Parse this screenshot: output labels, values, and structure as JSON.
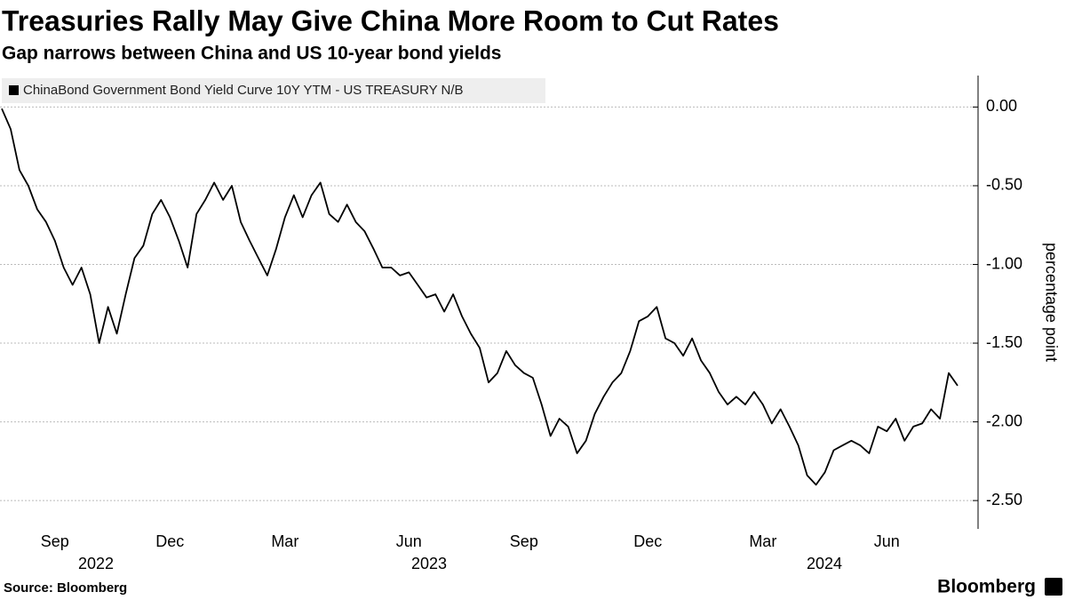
{
  "chart_data": {
    "type": "line",
    "title": "Treasuries Rally May Give China More Room to Cut Rates",
    "subtitle": "Gap narrows between China and US 10-year bond yields",
    "y_label": "percentage point",
    "source": "Source: Bloomberg",
    "brand": "Bloomberg",
    "x_group_labels": [
      "2022",
      "2023",
      "2024"
    ],
    "categories": [
      null,
      null,
      null,
      null,
      null,
      null,
      "Sep",
      null,
      null,
      null,
      null,
      null,
      null,
      null,
      null,
      null,
      null,
      null,
      null,
      "Dec",
      null,
      null,
      null,
      null,
      null,
      null,
      null,
      null,
      null,
      null,
      null,
      null,
      "Mar",
      null,
      null,
      null,
      null,
      null,
      null,
      null,
      null,
      null,
      null,
      null,
      null,
      null,
      "Jun",
      null,
      null,
      null,
      null,
      null,
      null,
      null,
      null,
      null,
      null,
      null,
      null,
      "Sep",
      null,
      null,
      null,
      null,
      null,
      null,
      null,
      null,
      null,
      null,
      null,
      null,
      null,
      "Dec",
      null,
      null,
      null,
      null,
      null,
      null,
      null,
      null,
      null,
      null,
      null,
      null,
      "Mar",
      null,
      null,
      null,
      null,
      null,
      null,
      null,
      null,
      null,
      null,
      null,
      null,
      null,
      "Jun",
      null,
      null,
      null,
      null,
      null,
      null,
      null,
      null
    ],
    "series": [
      {
        "name": "ChinaBond Government Bond Yield Curve 10Y YTM - US TREASURY N/B",
        "color": "#000000",
        "values": [
          -0.01,
          -0.14,
          -0.4,
          -0.5,
          -0.65,
          -0.73,
          -0.85,
          -1.02,
          -1.13,
          -1.02,
          -1.19,
          -1.5,
          -1.27,
          -1.44,
          -1.19,
          -0.96,
          -0.88,
          -0.68,
          -0.59,
          -0.7,
          -0.85,
          -1.02,
          -0.68,
          -0.59,
          -0.48,
          -0.59,
          -0.5,
          -0.73,
          -0.85,
          -0.96,
          -1.07,
          -0.9,
          -0.7,
          -0.56,
          -0.7,
          -0.56,
          -0.48,
          -0.68,
          -0.73,
          -0.62,
          -0.73,
          -0.79,
          -0.9,
          -1.02,
          -1.02,
          -1.07,
          -1.05,
          -1.13,
          -1.21,
          -1.19,
          -1.3,
          -1.19,
          -1.33,
          -1.44,
          -1.53,
          -1.75,
          -1.69,
          -1.55,
          -1.64,
          -1.69,
          -1.72,
          -1.89,
          -2.09,
          -1.98,
          -2.03,
          -2.2,
          -2.12,
          -1.95,
          -1.84,
          -1.75,
          -1.69,
          -1.55,
          -1.36,
          -1.33,
          -1.27,
          -1.47,
          -1.5,
          -1.58,
          -1.47,
          -1.61,
          -1.69,
          -1.81,
          -1.89,
          -1.84,
          -1.89,
          -1.81,
          -1.89,
          -2.01,
          -1.92,
          -2.03,
          -2.15,
          -2.34,
          -2.4,
          -2.32,
          -2.18,
          -2.15,
          -2.12,
          -2.15,
          -2.2,
          -2.03,
          -2.06,
          -1.98,
          -2.12,
          -2.03,
          -2.01,
          -1.92,
          -1.98,
          -1.69,
          -1.77
        ]
      }
    ],
    "ylim": [
      -2.68,
      0.2
    ],
    "yticks": [
      {
        "value": 0,
        "label": "0.00"
      },
      {
        "value": -0.5,
        "label": "-0.50"
      },
      {
        "value": -1,
        "label": "-1.00"
      },
      {
        "value": -1.5,
        "label": "-1.50"
      },
      {
        "value": -2,
        "label": "-2.00"
      },
      {
        "value": -2.5,
        "label": "-2.50"
      }
    ],
    "grid": true,
    "legend": "top-left"
  }
}
